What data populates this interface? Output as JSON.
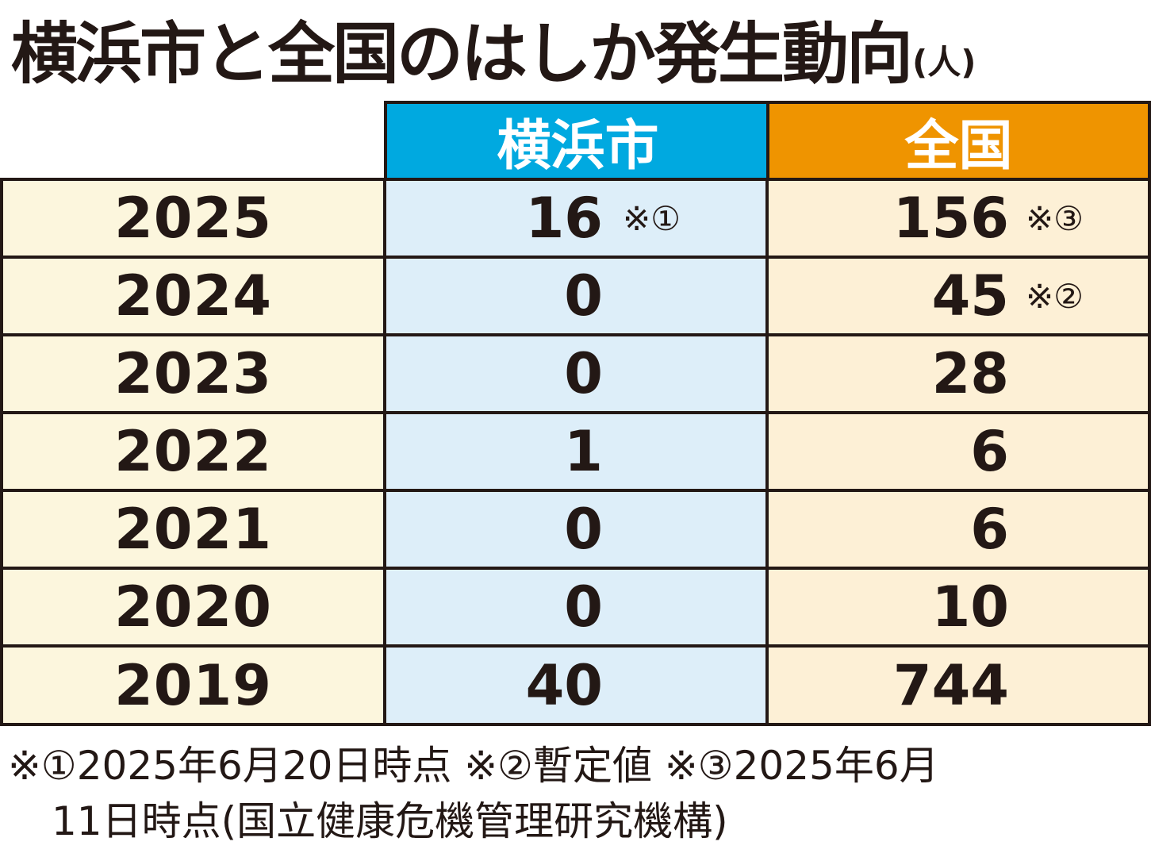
{
  "title": "横浜市と全国のはしか発生動向",
  "unit": "(人)",
  "colors": {
    "yokohama_header": "#00a9e0",
    "zenkoku_header": "#ef9400",
    "year_cell": "#fcf6dd",
    "yokohama_cell": "#ddeef9",
    "zenkoku_cell": "#fdf0d6",
    "border": "#231815"
  },
  "chart_data": {
    "type": "table",
    "columns": [
      "横浜市",
      "全国"
    ],
    "rows": [
      {
        "year": "2025",
        "yokohama": "16",
        "yokohama_note": "※①",
        "zenkoku": "156",
        "zenkoku_note": "※③"
      },
      {
        "year": "2024",
        "yokohama": "0",
        "yokohama_note": "",
        "zenkoku": "45",
        "zenkoku_note": "※②"
      },
      {
        "year": "2023",
        "yokohama": "0",
        "yokohama_note": "",
        "zenkoku": "28",
        "zenkoku_note": ""
      },
      {
        "year": "2022",
        "yokohama": "1",
        "yokohama_note": "",
        "zenkoku": "6",
        "zenkoku_note": ""
      },
      {
        "year": "2021",
        "yokohama": "0",
        "yokohama_note": "",
        "zenkoku": "6",
        "zenkoku_note": ""
      },
      {
        "year": "2020",
        "yokohama": "0",
        "yokohama_note": "",
        "zenkoku": "10",
        "zenkoku_note": ""
      },
      {
        "year": "2019",
        "yokohama": "40",
        "yokohama_note": "",
        "zenkoku": "744",
        "zenkoku_note": ""
      }
    ]
  },
  "footnote": {
    "line1": "※①2025年6月20日時点 ※②暫定値 ※③2025年6月",
    "line2": "11日時点(国立健康危機管理研究機構)"
  }
}
